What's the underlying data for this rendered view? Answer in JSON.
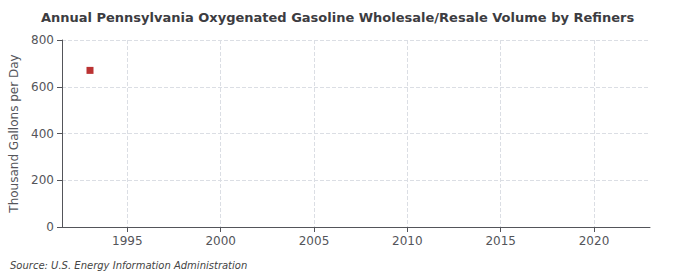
{
  "chart_data": {
    "type": "scatter",
    "title": "Annual Pennsylvania Oxygenated Gasoline Wholesale/Resale Volume by Refiners",
    "ylabel": "Thousand Gallons per Day",
    "source": "Source: U.S. Energy Information Administration",
    "x": [
      1993.0
    ],
    "values": [
      670.0
    ],
    "color": "#aa0000",
    "marker": "square",
    "xlim": [
      1991.5,
      2023
    ],
    "ylim": [
      0,
      800
    ],
    "xticks": [
      1995,
      2000,
      2005,
      2010,
      2015,
      2020
    ],
    "yticks": [
      0,
      200,
      400,
      600,
      800
    ],
    "grid": true
  }
}
